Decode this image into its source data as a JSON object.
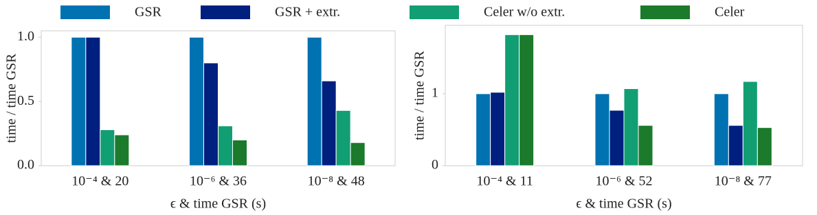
{
  "chart_data": [
    {
      "type": "bar",
      "ylabel": "time / time GSR",
      "xlabel": "ϵ & time GSR (s)",
      "categories": [
        "10⁻⁴ & 20",
        "10⁻⁶ & 36",
        "10⁻⁸ & 48"
      ],
      "series": [
        {
          "name": "GSR",
          "color": "#0072b2",
          "values": [
            1.0,
            1.0,
            1.0
          ]
        },
        {
          "name": "GSR + extr.",
          "color": "#00207f",
          "values": [
            1.0,
            0.8,
            0.66
          ]
        },
        {
          "name": "Celer w/o extr.",
          "color": "#129e73",
          "values": [
            0.28,
            0.31,
            0.43
          ]
        },
        {
          "name": "Celer",
          "color": "#1b7a2b",
          "values": [
            0.24,
            0.2,
            0.18
          ]
        }
      ],
      "ylim": [
        0,
        1.05
      ],
      "yticks": [
        {
          "value": 0,
          "label": "0.0"
        },
        0.5,
        {
          "value": 1,
          "label": "1.0"
        }
      ]
    },
    {
      "type": "bar",
      "ylabel": "time / time GSR",
      "xlabel": "ϵ & time GSR (s)",
      "categories": [
        "10⁻⁴ & 11",
        "10⁻⁶ & 52",
        "10⁻⁸ & 77"
      ],
      "series": [
        {
          "color": "#0072b2",
          "values": [
            1.0,
            1.0,
            1.0
          ]
        },
        {
          "color": "#00207f",
          "values": [
            1.02,
            0.77,
            0.56
          ]
        },
        {
          "color": "#129e73",
          "values": [
            1.82,
            1.07,
            1.17
          ]
        },
        {
          "color": "#1b7a2b",
          "values": [
            1.82,
            0.56,
            0.53
          ]
        }
      ],
      "ylim": [
        0,
        1.95
      ],
      "yticks": [
        0,
        1
      ]
    }
  ]
}
